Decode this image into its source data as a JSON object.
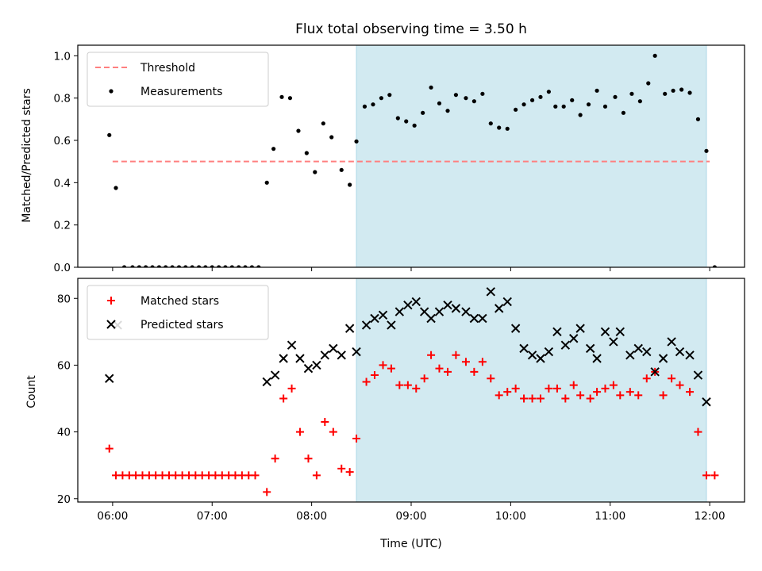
{
  "chart_data": [
    {
      "type": "scatter",
      "title": "Flux total observing time = 3.50 h",
      "xlabel": "",
      "ylabel": "Matched/Predicted stars",
      "xlim": [
        -0.35,
        6.35
      ],
      "ylim": [
        0,
        1.05
      ],
      "yticks": [
        0.0,
        0.2,
        0.4,
        0.6,
        0.8,
        1.0
      ],
      "ytick_labels": [
        "0.0",
        "0.2",
        "0.4",
        "0.6",
        "0.8",
        "1.0"
      ],
      "shaded_interval": [
        2.45,
        5.967
      ],
      "shade_color": "#add8e6",
      "legend_position": "upper left",
      "threshold": {
        "name": "Threshold",
        "value": 0.5,
        "x_range": [
          0,
          6
        ],
        "color": "#ff7f7f"
      },
      "series": [
        {
          "name": "Measurements",
          "marker": "dot",
          "color": "#000000",
          "x": [
            -0.033,
            0.033,
            0.117,
            0.2,
            0.267,
            0.333,
            0.4,
            0.467,
            0.533,
            0.6,
            0.667,
            0.733,
            0.8,
            0.867,
            0.933,
            1.0,
            1.067,
            1.133,
            1.2,
            1.267,
            1.333,
            1.4,
            1.467,
            1.55,
            1.617,
            1.7,
            1.783,
            1.867,
            1.95,
            2.033,
            2.117,
            2.2,
            2.3,
            2.383,
            2.45,
            2.533,
            2.617,
            2.7,
            2.783,
            2.867,
            2.95,
            3.033,
            3.117,
            3.2,
            3.283,
            3.367,
            3.45,
            3.55,
            3.633,
            3.717,
            3.8,
            3.883,
            3.967,
            4.05,
            4.133,
            4.217,
            4.3,
            4.383,
            4.45,
            4.533,
            4.617,
            4.7,
            4.783,
            4.867,
            4.95,
            5.05,
            5.133,
            5.217,
            5.3,
            5.383,
            5.45,
            5.55,
            5.633,
            5.717,
            5.8,
            5.883,
            5.967,
            6.05
          ],
          "y": [
            0.625,
            0.375,
            0,
            0,
            0,
            0,
            0,
            0,
            0,
            0,
            0,
            0,
            0,
            0,
            0,
            0,
            0,
            0,
            0,
            0,
            0,
            0,
            0,
            0.4,
            0.56,
            0.805,
            0.8,
            0.645,
            0.54,
            0.45,
            0.68,
            0.615,
            0.46,
            0.39,
            0.595,
            0.76,
            0.77,
            0.8,
            0.815,
            0.705,
            0.69,
            0.67,
            0.73,
            0.85,
            0.775,
            0.74,
            0.815,
            0.8,
            0.785,
            0.82,
            0.68,
            0.66,
            0.655,
            0.745,
            0.77,
            0.79,
            0.805,
            0.83,
            0.76,
            0.76,
            0.79,
            0.72,
            0.77,
            0.835,
            0.76,
            0.805,
            0.73,
            0.82,
            0.785,
            0.87,
            1.0,
            0.82,
            0.835,
            0.84,
            0.825,
            0.7,
            0.55,
            0.0
          ]
        }
      ]
    },
    {
      "type": "scatter",
      "title": "",
      "xlabel": "Time (UTC)",
      "ylabel": "Count",
      "xlim": [
        -0.35,
        6.35
      ],
      "ylim": [
        19,
        86
      ],
      "yticks": [
        20,
        40,
        60,
        80
      ],
      "ytick_labels": [
        "20",
        "40",
        "60",
        "80"
      ],
      "xticks": [
        0,
        1,
        2,
        3,
        4,
        5,
        6
      ],
      "xtick_labels": [
        "06:00",
        "07:00",
        "08:00",
        "09:00",
        "10:00",
        "11:00",
        "12:00"
      ],
      "shaded_interval": [
        2.45,
        5.967
      ],
      "shade_color": "#add8e6",
      "legend_position": "upper left",
      "series": [
        {
          "name": "Matched stars",
          "marker": "plus",
          "color": "#ff0000",
          "x": [
            -0.033,
            0.033,
            0.1,
            0.167,
            0.233,
            0.3,
            0.367,
            0.433,
            0.5,
            0.567,
            0.633,
            0.7,
            0.767,
            0.833,
            0.9,
            0.967,
            1.033,
            1.1,
            1.167,
            1.233,
            1.3,
            1.367,
            1.433,
            1.55,
            1.633,
            1.717,
            1.8,
            1.883,
            1.967,
            2.05,
            2.133,
            2.217,
            2.3,
            2.383,
            2.45,
            2.55,
            2.633,
            2.717,
            2.8,
            2.883,
            2.967,
            3.05,
            3.133,
            3.2,
            3.283,
            3.367,
            3.45,
            3.55,
            3.633,
            3.717,
            3.8,
            3.883,
            3.967,
            4.05,
            4.133,
            4.217,
            4.3,
            4.383,
            4.467,
            4.55,
            4.633,
            4.7,
            4.8,
            4.867,
            4.95,
            5.033,
            5.1,
            5.2,
            5.283,
            5.367,
            5.45,
            5.533,
            5.617,
            5.7,
            5.8,
            5.883,
            5.967,
            6.05
          ],
          "y": [
            35,
            27,
            27,
            27,
            27,
            27,
            27,
            27,
            27,
            27,
            27,
            27,
            27,
            27,
            27,
            27,
            27,
            27,
            27,
            27,
            27,
            27,
            27,
            22,
            32,
            50,
            53,
            40,
            32,
            27,
            43,
            40,
            29,
            28,
            38,
            55,
            57,
            60,
            59,
            54,
            54,
            53,
            56,
            63,
            59,
            58,
            63,
            61,
            58,
            61,
            56,
            51,
            52,
            53,
            50,
            50,
            50,
            53,
            53,
            50,
            54,
            51,
            50,
            52,
            53,
            54,
            51,
            52,
            51,
            56,
            58,
            51,
            56,
            54,
            52,
            40,
            27,
            27
          ]
        },
        {
          "name": "Predicted stars",
          "marker": "x",
          "color": "#000000",
          "x": [
            -0.033,
            0.05,
            1.55,
            1.633,
            1.717,
            1.8,
            1.883,
            1.967,
            2.05,
            2.133,
            2.217,
            2.3,
            2.383,
            2.45,
            2.55,
            2.633,
            2.717,
            2.8,
            2.883,
            2.967,
            3.05,
            3.133,
            3.2,
            3.283,
            3.367,
            3.45,
            3.55,
            3.633,
            3.717,
            3.8,
            3.883,
            3.967,
            4.05,
            4.133,
            4.217,
            4.3,
            4.383,
            4.467,
            4.55,
            4.633,
            4.7,
            4.8,
            4.867,
            4.95,
            5.033,
            5.1,
            5.2,
            5.283,
            5.367,
            5.45,
            5.533,
            5.617,
            5.7,
            5.8,
            5.883,
            5.967
          ],
          "y": [
            56,
            72,
            55,
            57,
            62,
            66,
            62,
            59,
            60,
            63,
            65,
            63,
            71,
            64,
            72,
            74,
            75,
            72,
            76,
            78,
            79,
            76,
            74,
            76,
            78,
            77,
            76,
            74,
            74,
            82,
            77,
            79,
            71,
            65,
            63,
            62,
            64,
            70,
            66,
            68,
            71,
            65,
            62,
            70,
            67,
            70,
            63,
            65,
            64,
            58,
            62,
            67,
            64,
            63,
            57,
            49
          ]
        }
      ]
    }
  ]
}
